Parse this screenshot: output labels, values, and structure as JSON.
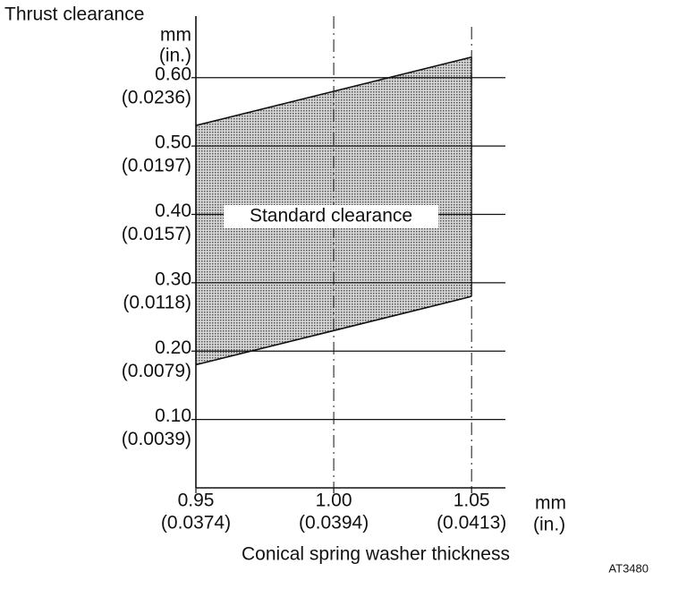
{
  "chart_data": {
    "type": "band",
    "y_title": [
      "Thrust clearance",
      "mm",
      "(in.)"
    ],
    "x_title": "Conical spring washer thickness",
    "x_unit": [
      "mm",
      "(in.)"
    ],
    "annotation": "Standard clearance",
    "code": "AT3480",
    "x": [
      0.95,
      1.05
    ],
    "lower": [
      0.18,
      0.28
    ],
    "upper": [
      0.53,
      0.63
    ],
    "color": "#555555",
    "xlim": [
      0.95,
      1.06
    ],
    "ylim": [
      0,
      0.69
    ],
    "xticks": [
      {
        "value": 0.95,
        "label": "0.95"
      },
      {
        "value": 1.0,
        "label": "1.00"
      },
      {
        "value": 1.05,
        "label": "1.05"
      }
    ],
    "xticks_in": [
      "(0.0374)",
      "(0.0394)",
      "(0.0413)"
    ],
    "yticks": [
      {
        "value": 0.1,
        "label": "0.10"
      },
      {
        "value": 0.2,
        "label": "0.20"
      },
      {
        "value": 0.3,
        "label": "0.30"
      },
      {
        "value": 0.4,
        "label": "0.40"
      },
      {
        "value": 0.5,
        "label": "0.50"
      },
      {
        "value": 0.6,
        "label": "0.60"
      }
    ],
    "yticks_in": [
      "(0.0039)",
      "(0.0079)",
      "(0.0118)",
      "(0.0157)",
      "(0.0197)",
      "(0.0236)"
    ],
    "grid": true
  }
}
